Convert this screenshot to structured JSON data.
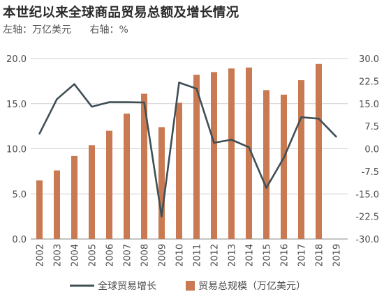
{
  "header": {
    "title": "本世纪以来全球商品贸易总额及增长情况",
    "left_axis_note": "左轴：万亿美元",
    "right_axis_note": "右轴：%"
  },
  "chart_data": {
    "type": "bar+line",
    "categories": [
      "2002",
      "2003",
      "2004",
      "2005",
      "2006",
      "2007",
      "2008",
      "2009",
      "2010",
      "2011",
      "2012",
      "2013",
      "2014",
      "2015",
      "2016",
      "2017",
      "2018",
      "2019"
    ],
    "series": [
      {
        "name": "贸易总规模（万亿美元）",
        "type": "bar",
        "axis": "left",
        "color": "#c97a52",
        "values": [
          6.5,
          7.6,
          9.2,
          10.4,
          12.0,
          13.9,
          16.1,
          12.4,
          15.1,
          18.2,
          18.5,
          18.9,
          19.0,
          16.5,
          16.0,
          17.6,
          19.4,
          null
        ]
      },
      {
        "name": "全球贸易增长",
        "type": "line",
        "axis": "right",
        "color": "#3f4f56",
        "values": [
          5.0,
          16.5,
          21.5,
          14.0,
          15.5,
          15.5,
          15.4,
          -22.5,
          22.0,
          20.0,
          2.0,
          3.0,
          0.5,
          -13.0,
          -3.0,
          10.5,
          10.0,
          4.0
        ]
      }
    ],
    "left_axis": {
      "min": 0,
      "max": 20,
      "ticks": [
        "0.0",
        "5.0",
        "10.0",
        "15.0",
        "20.0"
      ]
    },
    "right_axis": {
      "min": -30,
      "max": 30,
      "ticks": [
        "-30.0",
        "-22.5",
        "-15.0",
        "-7.5",
        "0.0",
        "7.5",
        "15.0",
        "22.5",
        "30.0"
      ]
    },
    "grid": "horizontal",
    "legend_position": "bottom"
  },
  "legend": {
    "line_label": "全球贸易增长",
    "bar_label": "贸易总规模（万亿美元）"
  }
}
